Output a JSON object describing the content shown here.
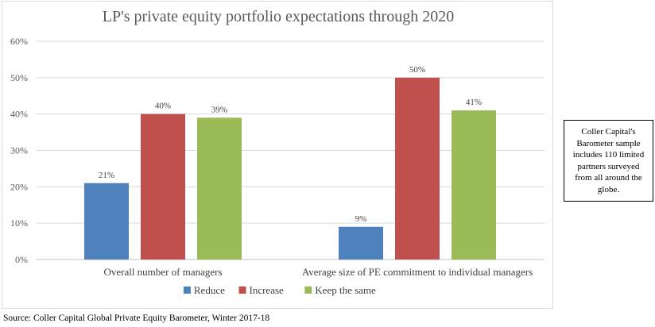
{
  "chart_data": {
    "type": "bar",
    "title": "LP's private equity portfolio expectations through 2020",
    "categories": [
      "Overall number of managers",
      "Average size of PE commitment to individual managers"
    ],
    "series": [
      {
        "name": "Reduce",
        "color": "#4f81bd",
        "values": [
          21,
          9
        ]
      },
      {
        "name": "Increase",
        "color": "#c0504d",
        "values": [
          40,
          50
        ]
      },
      {
        "name": "Keep the same",
        "color": "#9bbb59",
        "values": [
          39,
          41
        ]
      }
    ],
    "ylim": [
      0,
      60
    ],
    "yticks": [
      0,
      10,
      20,
      30,
      40,
      50,
      60
    ],
    "value_suffix": "%",
    "grid": true,
    "legend_position": "bottom"
  },
  "note": "Coller Capital's Barometer sample includes 110 limited partners surveyed from all around the globe.",
  "source": "Source: Coller Capital Global Private Equity Barometer, Winter 2017-18"
}
